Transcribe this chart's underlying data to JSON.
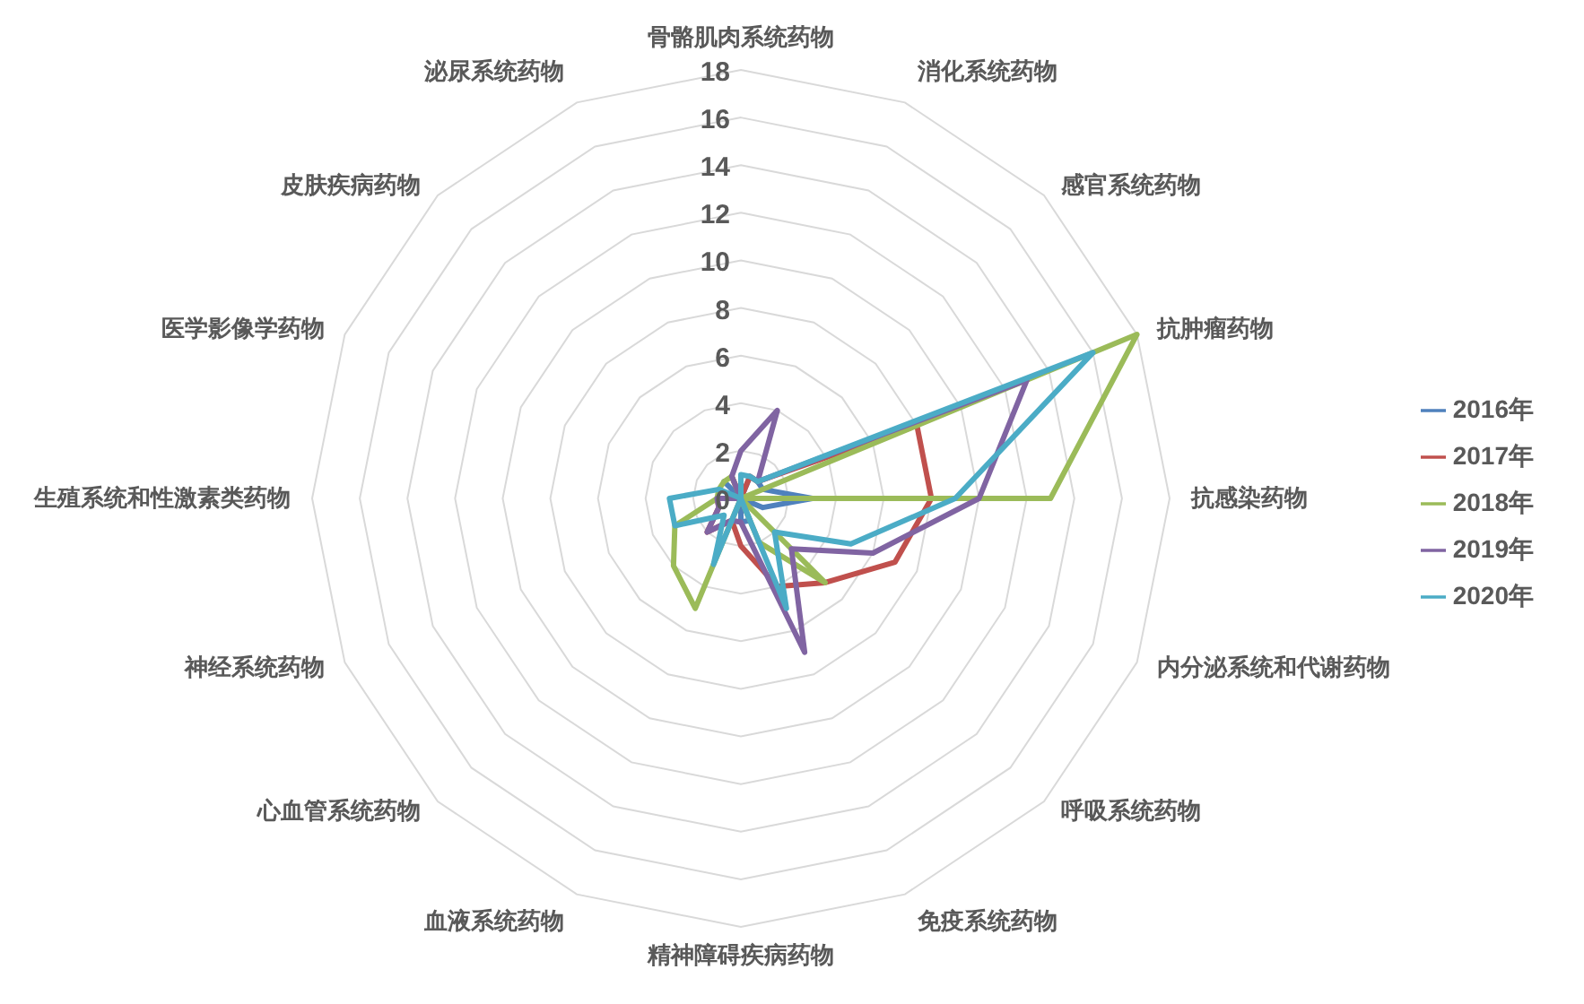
{
  "chart_data": {
    "type": "radar",
    "categories": [
      "骨骼肌肉系统药物",
      "消化系统药物",
      "感官系统药物",
      "抗肿瘤药物",
      "抗感染药物",
      "内分泌系统和代谢药物",
      "呼吸系统药物",
      "免疫系统药物",
      "精神障碍疾病药物",
      "血液系统药物",
      "心血管系统药物",
      "神经系统药物",
      "生殖系统和性激素类药物",
      "医学影像学药物",
      "皮肤疾病药物",
      "泌尿系统药物"
    ],
    "series": [
      {
        "name": "2016年",
        "color": "#4f81bd",
        "values": [
          0,
          1,
          1,
          1,
          3,
          1,
          0,
          1,
          1,
          0,
          0,
          0,
          0,
          0,
          1,
          0
        ]
      },
      {
        "name": "2017年",
        "color": "#c0504d",
        "values": [
          0,
          1,
          1,
          8,
          8,
          7,
          5,
          4,
          2,
          1,
          2,
          1,
          1,
          0,
          0,
          1
        ]
      },
      {
        "name": "2018年",
        "color": "#9bbb59",
        "values": [
          0,
          0,
          0,
          18,
          13,
          0,
          5,
          2,
          0,
          5,
          4,
          3,
          1,
          1,
          1,
          1
        ]
      },
      {
        "name": "2019年",
        "color": "#8064a2",
        "values": [
          2,
          4,
          1,
          13,
          10,
          6,
          3,
          7,
          1,
          1,
          2,
          1,
          1,
          0,
          0,
          1
        ]
      },
      {
        "name": "2020年",
        "color": "#4bacc6",
        "values": [
          1,
          1,
          1,
          16,
          9,
          5,
          2,
          5,
          0,
          3,
          1,
          3,
          3,
          1,
          0,
          0
        ]
      }
    ],
    "ylim": [
      0,
      18
    ],
    "yticks": [
      0,
      2,
      4,
      6,
      8,
      10,
      12,
      14,
      16,
      18
    ],
    "grid": true,
    "legend": "right",
    "marker": "none",
    "line_style": "solid"
  }
}
